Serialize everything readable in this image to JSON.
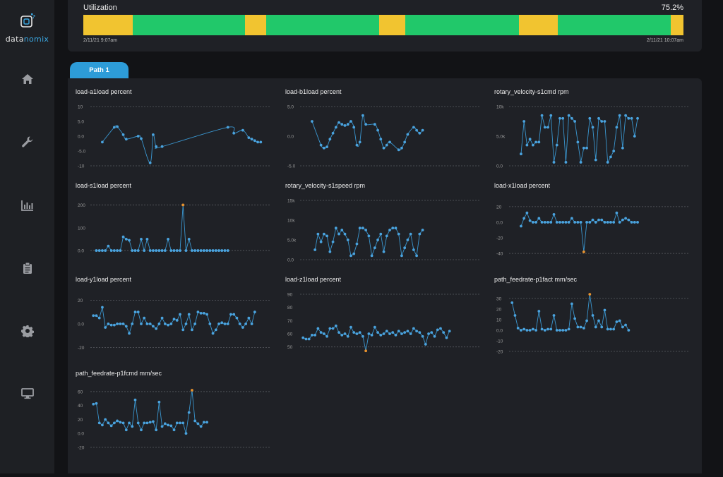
{
  "brand": {
    "prefix": "data",
    "suffix": "nomix"
  },
  "nav": [
    "home-icon",
    "wrench-icon",
    "bar-chart-icon",
    "clipboard-icon",
    "gear-icon",
    "monitor-icon"
  ],
  "utilization": {
    "title": "Utilization",
    "percent": "75.2%",
    "start": "2/11/21 9:07am",
    "end": "2/11/21 10:07am",
    "segments": [
      {
        "state": "idle",
        "share": 8.2,
        "color": "#f1c430"
      },
      {
        "state": "running",
        "share": 18.8,
        "color": "#21c86a"
      },
      {
        "state": "idle",
        "share": 3.5,
        "color": "#f1c430"
      },
      {
        "state": "running",
        "share": 18.8,
        "color": "#21c86a"
      },
      {
        "state": "idle",
        "share": 4.3,
        "color": "#f1c430"
      },
      {
        "state": "running",
        "share": 19.0,
        "color": "#21c86a"
      },
      {
        "state": "idle",
        "share": 6.5,
        "color": "#f1c430"
      },
      {
        "state": "running",
        "share": 18.8,
        "color": "#21c86a"
      },
      {
        "state": "idle",
        "share": 2.1,
        "color": "#f1c430"
      }
    ]
  },
  "tab": {
    "label": "Path 1"
  },
  "colors": {
    "line": "#3a96cf",
    "point": "#4aa3de",
    "outlier": "#e8922d",
    "grid": "#5a5c62"
  },
  "chart_data": [
    {
      "type": "line",
      "title": "load-a1load percent",
      "yticks": [
        "10",
        "5.0",
        "0.0",
        "-5.0",
        "-10"
      ],
      "tickvals": [
        10,
        5,
        0,
        -5,
        -10
      ],
      "ylim": [
        -10,
        10
      ],
      "smooth": true,
      "x": [
        4,
        8,
        9,
        11,
        12,
        16,
        17,
        20,
        21,
        22,
        24,
        46,
        48,
        51,
        53,
        54,
        55,
        56,
        57
      ],
      "y": [
        -2,
        3,
        3.2,
        0.5,
        -1,
        0,
        -0.8,
        -9,
        0.5,
        -3.5,
        -3.5,
        3,
        1,
        2,
        -0.5,
        -1,
        -1.5,
        -2,
        -2
      ]
    },
    {
      "type": "line",
      "title": "load-b1load percent",
      "yticks": [
        "5.0",
        "0.0",
        "-5.0"
      ],
      "tickvals": [
        5,
        0,
        -5
      ],
      "ylim": [
        -5,
        5
      ],
      "smooth": true,
      "x": [
        4,
        7,
        8,
        9,
        10,
        11,
        12,
        13,
        14,
        15,
        16,
        17,
        18,
        19,
        20,
        21,
        22,
        25,
        26,
        27,
        28,
        29,
        30,
        33,
        34,
        35,
        36,
        38,
        39,
        40,
        41
      ],
      "y": [
        2.5,
        -1.5,
        -2,
        -1.8,
        -0.5,
        0.5,
        1.5,
        2.3,
        2,
        1.8,
        2,
        2.5,
        1.5,
        -1.5,
        -1,
        3.5,
        2,
        2,
        1,
        -0.5,
        -2,
        -1.5,
        -1,
        -2.3,
        -2,
        -1,
        0.3,
        1.5,
        1,
        0.5,
        1
      ]
    },
    {
      "type": "line",
      "title": "rotary_velocity-s1cmd rpm",
      "yticks": [
        "10k",
        "5.0k",
        "0.0"
      ],
      "tickvals": [
        10000,
        5000,
        0
      ],
      "ylim": [
        0,
        10000
      ],
      "smooth": false,
      "x": [
        4,
        5,
        6,
        7,
        8,
        9,
        10,
        11,
        12,
        13,
        14,
        15,
        16,
        17,
        18,
        19,
        20,
        21,
        22,
        23,
        24,
        25,
        26,
        27,
        28,
        29,
        30,
        31,
        32,
        33,
        34,
        35,
        36,
        37,
        38,
        39,
        40,
        41,
        42,
        43
      ],
      "y": [
        2000,
        7500,
        3500,
        4500,
        3500,
        4000,
        4000,
        8500,
        6500,
        6500,
        8500,
        600,
        3500,
        8000,
        8000,
        600,
        8500,
        8000,
        7500,
        4000,
        600,
        3000,
        3000,
        8000,
        6500,
        1000,
        8000,
        7500,
        7500,
        600,
        1500,
        2500,
        6500,
        8500,
        3000,
        8500,
        8000,
        8000,
        5000,
        8000
      ]
    },
    {
      "type": "line",
      "title": "load-s1load percent",
      "yticks": [
        "200",
        "100",
        "0.0"
      ],
      "tickvals": [
        200,
        100,
        0
      ],
      "ylim": [
        -40,
        220
      ],
      "smooth": false,
      "x": [
        2,
        3,
        4,
        5,
        6,
        7,
        8,
        9,
        10,
        11,
        12,
        13,
        14,
        15,
        16,
        17,
        18,
        19,
        20,
        21,
        22,
        23,
        24,
        25,
        26,
        27,
        28,
        29,
        30,
        31,
        32,
        33,
        34,
        35,
        36,
        37,
        38,
        39,
        40,
        41,
        42,
        43,
        44,
        45,
        46
      ],
      "y": [
        0,
        0,
        0,
        0,
        20,
        0,
        0,
        0,
        0,
        60,
        50,
        45,
        0,
        0,
        0,
        50,
        0,
        50,
        0,
        0,
        0,
        0,
        0,
        0,
        50,
        0,
        0,
        0,
        0,
        200,
        0,
        50,
        0,
        0,
        0,
        0,
        0,
        0,
        0,
        0,
        0,
        0,
        0,
        0,
        0
      ]
    },
    {
      "type": "line",
      "title": "rotary_velocity-s1speed rpm",
      "yticks": [
        "15k",
        "10k",
        "5.0k",
        "0.0"
      ],
      "tickvals": [
        15000,
        10000,
        5000,
        0
      ],
      "ylim": [
        0,
        15000
      ],
      "smooth": false,
      "x": [
        5,
        6,
        7,
        8,
        9,
        10,
        11,
        12,
        13,
        14,
        15,
        16,
        17,
        18,
        19,
        20,
        21,
        22,
        23,
        24,
        25,
        26,
        27,
        28,
        29,
        30,
        31,
        32,
        33,
        34,
        35,
        36,
        37,
        38,
        39,
        40,
        41
      ],
      "y": [
        2500,
        6500,
        4500,
        6500,
        6000,
        2000,
        4500,
        8000,
        6500,
        7500,
        6500,
        5000,
        1000,
        1500,
        4000,
        8000,
        8000,
        7500,
        6000,
        1000,
        3000,
        5000,
        6500,
        2000,
        6000,
        7500,
        8000,
        8000,
        6500,
        1000,
        3000,
        5000,
        6500,
        2500,
        1000,
        6500,
        7500
      ]
    },
    {
      "type": "line",
      "title": "load-x1load percent",
      "yticks": [
        "20",
        "0.0",
        "-20",
        "-40"
      ],
      "tickvals": [
        20,
        0,
        -20,
        -40
      ],
      "ylim": [
        -48,
        28
      ],
      "smooth": false,
      "x": [
        4,
        5,
        6,
        7,
        8,
        9,
        10,
        11,
        12,
        13,
        14,
        15,
        16,
        17,
        18,
        19,
        20,
        21,
        22,
        23,
        24,
        25,
        26,
        27,
        28,
        29,
        30,
        31,
        32,
        33,
        34,
        35,
        36,
        37,
        38,
        39,
        40,
        41,
        42,
        43
      ],
      "y": [
        -5,
        5,
        12,
        2,
        0,
        0,
        5,
        0,
        0,
        0,
        0,
        10,
        0,
        0,
        0,
        0,
        0,
        5,
        0,
        0,
        0,
        -38,
        0,
        0,
        3,
        0,
        3,
        3,
        0,
        0,
        0,
        0,
        12,
        0,
        3,
        5,
        3,
        0,
        0,
        0
      ]
    },
    {
      "type": "line",
      "title": "load-y1load percent",
      "yticks": [
        "20",
        "0.0",
        "-20"
      ],
      "tickvals": [
        20,
        0,
        -20
      ],
      "ylim": [
        -25,
        25
      ],
      "smooth": false,
      "x": [
        1,
        2,
        3,
        4,
        5,
        6,
        7,
        8,
        9,
        10,
        11,
        12,
        13,
        14,
        15,
        16,
        17,
        18,
        19,
        20,
        21,
        22,
        23,
        24,
        25,
        26,
        27,
        28,
        29,
        30,
        31,
        32,
        33,
        34,
        35,
        36,
        37,
        38,
        39,
        40,
        41,
        42,
        43,
        44,
        45,
        46,
        47,
        48,
        49,
        50,
        51,
        52,
        53,
        54,
        55
      ],
      "y": [
        7,
        7,
        5,
        14,
        -3,
        0,
        -1,
        -1,
        0,
        0,
        0,
        -2,
        -8,
        0,
        10,
        10,
        0,
        5,
        0,
        0,
        -2,
        -4,
        0,
        5,
        0,
        -1,
        0,
        4,
        3,
        8,
        -5,
        0,
        8,
        -5,
        0,
        10,
        9,
        9,
        8,
        0,
        -8,
        -5,
        0,
        1,
        0,
        0,
        8,
        8,
        5,
        0,
        -3,
        0,
        5,
        0,
        10
      ]
    },
    {
      "type": "line",
      "title": "load-z1load percent",
      "yticks": [
        "90",
        "80",
        "70",
        "60",
        "50"
      ],
      "tickvals": [
        90,
        80,
        70,
        60,
        50
      ],
      "ylim": [
        45,
        90
      ],
      "smooth": false,
      "x": [
        1,
        2,
        3,
        4,
        5,
        6,
        7,
        8,
        9,
        10,
        11,
        12,
        13,
        14,
        15,
        16,
        17,
        18,
        19,
        20,
        21,
        22,
        23,
        24,
        25,
        26,
        27,
        28,
        29,
        30,
        31,
        32,
        33,
        34,
        35,
        36,
        37,
        38,
        39,
        40,
        41,
        42,
        43,
        44,
        45,
        46,
        47,
        48,
        49,
        50
      ],
      "y": [
        57,
        56,
        56,
        59,
        59,
        64,
        61,
        60,
        58,
        64,
        64,
        66,
        61,
        59,
        60,
        58,
        65,
        61,
        60,
        61,
        58,
        47,
        60,
        59,
        65,
        61,
        59,
        60,
        62,
        60,
        61,
        59,
        62,
        60,
        61,
        62,
        60,
        64,
        62,
        61,
        58,
        52,
        60,
        61,
        58,
        63,
        64,
        61,
        57,
        62
      ]
    },
    {
      "type": "line",
      "title": "path_feedrate-p1fact mm/sec",
      "yticks": [
        "30",
        "20",
        "10",
        "0.0",
        "-10",
        "-20"
      ],
      "tickvals": [
        30,
        20,
        10,
        0,
        -10,
        -20
      ],
      "ylim": [
        -22,
        34
      ],
      "smooth": false,
      "x": [
        1,
        2,
        3,
        4,
        5,
        6,
        7,
        8,
        9,
        10,
        11,
        12,
        13,
        14,
        15,
        16,
        17,
        18,
        19,
        20,
        21,
        22,
        23,
        24,
        25,
        26,
        27,
        28,
        29,
        30,
        31,
        32,
        33,
        34,
        35,
        36,
        37,
        38,
        39,
        40
      ],
      "y": [
        26,
        14,
        2,
        0,
        1,
        0,
        0,
        1,
        0,
        18,
        1,
        0,
        1,
        1,
        14,
        0,
        0,
        0,
        0,
        1,
        25,
        11,
        3,
        3,
        2,
        9,
        34,
        14,
        3,
        9,
        3,
        19,
        1,
        1,
        1,
        8,
        9,
        3,
        5,
        0
      ]
    },
    {
      "type": "line",
      "title": "path_feedrate-p1fcmd mm/sec",
      "yticks": [
        "60",
        "40",
        "20",
        "0.0",
        "-20"
      ],
      "tickvals": [
        60,
        40,
        20,
        0,
        -20
      ],
      "ylim": [
        -20,
        65
      ],
      "smooth": false,
      "x": [
        1,
        2,
        3,
        4,
        5,
        6,
        7,
        8,
        9,
        10,
        11,
        12,
        13,
        14,
        15,
        16,
        17,
        18,
        19,
        20,
        21,
        22,
        23,
        24,
        25,
        26,
        27,
        28,
        29,
        30,
        31,
        32,
        33,
        34,
        35,
        36,
        37,
        38,
        39
      ],
      "y": [
        42,
        43,
        15,
        12,
        20,
        15,
        11,
        15,
        18,
        16,
        15,
        5,
        15,
        10,
        48,
        15,
        5,
        15,
        15,
        16,
        17,
        5,
        45,
        10,
        14,
        12,
        11,
        5,
        15,
        15,
        15,
        0,
        30,
        62,
        18,
        14,
        10,
        16,
        16
      ]
    }
  ]
}
